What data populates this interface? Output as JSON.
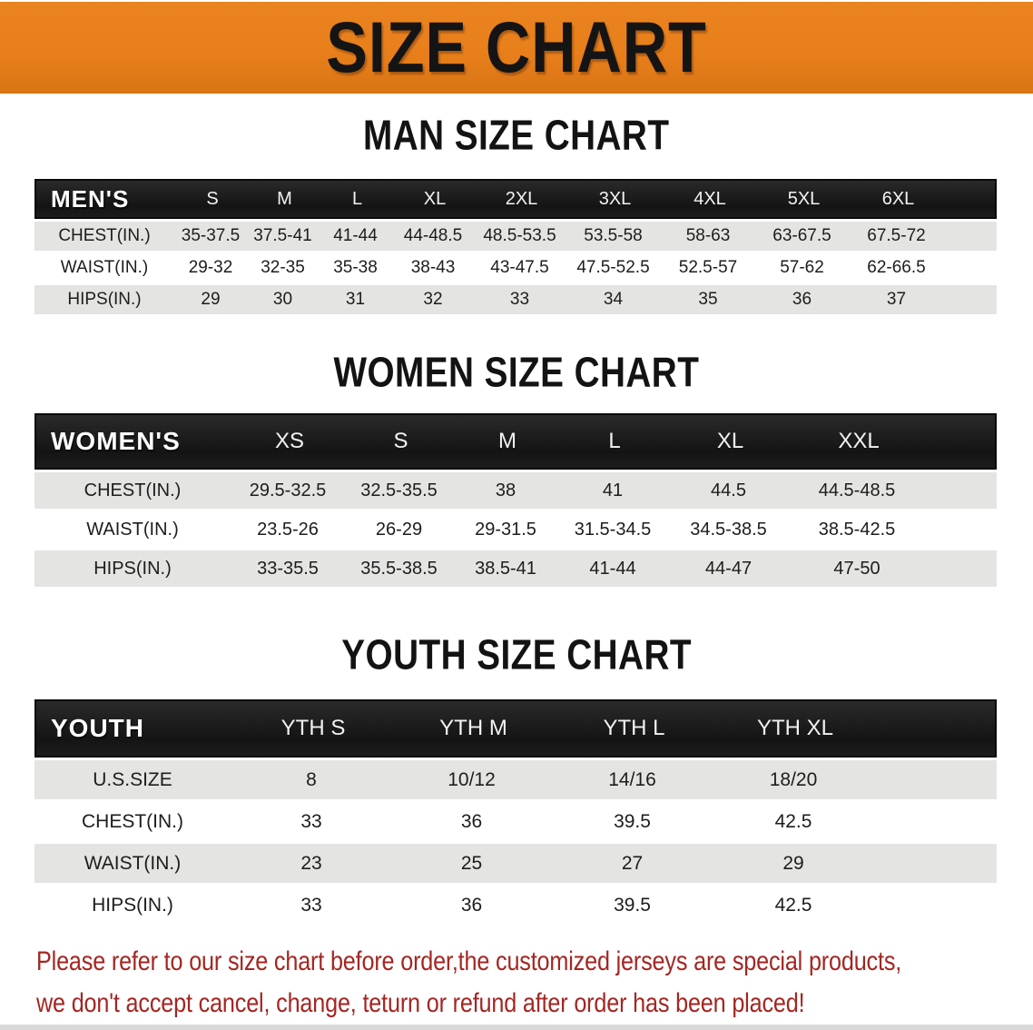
{
  "banner": {
    "title": "SIZE CHART",
    "bg_color": "#E8801C"
  },
  "sections": [
    {
      "heading": "MAN SIZE CHART",
      "table": {
        "label": "MEN'S",
        "columns": [
          "S",
          "M",
          "L",
          "XL",
          "2XL",
          "3XL",
          "4XL",
          "5XL",
          "6XL"
        ],
        "rows": [
          {
            "label": "CHEST(IN.)",
            "values": [
              "35-37.5",
              "37.5-41",
              "41-44",
              "44-48.5",
              "48.5-53.5",
              "53.5-58",
              "58-63",
              "63-67.5",
              "67.5-72"
            ]
          },
          {
            "label": "WAIST(IN.)",
            "values": [
              "29-32",
              "32-35",
              "35-38",
              "38-43",
              "43-47.5",
              "47.5-52.5",
              "52.5-57",
              "57-62",
              "62-66.5"
            ]
          },
          {
            "label": "HIPS(IN.)",
            "values": [
              "29",
              "30",
              "31",
              "32",
              "33",
              "34",
              "35",
              "36",
              "37"
            ]
          }
        ]
      }
    },
    {
      "heading": "WOMEN SIZE CHART",
      "table": {
        "label": "WOMEN'S",
        "columns": [
          "XS",
          "S",
          "M",
          "L",
          "XL",
          "XXL"
        ],
        "rows": [
          {
            "label": "CHEST(IN.)",
            "values": [
              "29.5-32.5",
              "32.5-35.5",
              "38",
              "41",
              "44.5",
              "44.5-48.5"
            ]
          },
          {
            "label": "WAIST(IN.)",
            "values": [
              "23.5-26",
              "26-29",
              "29-31.5",
              "31.5-34.5",
              "34.5-38.5",
              "38.5-42.5"
            ]
          },
          {
            "label": "HIPS(IN.)",
            "values": [
              "33-35.5",
              "35.5-38.5",
              "38.5-41",
              "41-44",
              "44-47",
              "47-50"
            ]
          }
        ]
      }
    },
    {
      "heading": "YOUTH SIZE CHART",
      "table": {
        "label": "YOUTH",
        "columns": [
          "YTH S",
          "YTH M",
          "YTH L",
          "YTH XL"
        ],
        "rows": [
          {
            "label": "U.S.SIZE",
            "values": [
              "8",
              "10/12",
              "14/16",
              "18/20"
            ]
          },
          {
            "label": "CHEST(IN.)",
            "values": [
              "33",
              "36",
              "39.5",
              "42.5"
            ]
          },
          {
            "label": "WAIST(IN.)",
            "values": [
              "23",
              "25",
              "27",
              "29"
            ]
          },
          {
            "label": "HIPS(IN.)",
            "values": [
              "33",
              "36",
              "39.5",
              "42.5"
            ]
          }
        ]
      }
    }
  ],
  "disclaimer": {
    "lines": [
      "Please refer to our size chart before order,the customized jerseys are special products,",
      "we don't accept cancel, change, teturn or refund after order has been placed!"
    ],
    "color": "#A32622"
  },
  "colors": {
    "banner_orange": "#E8801C",
    "header_black": "#161616",
    "row_gray": "#E4E4E2",
    "row_white": "#FFFFFF",
    "disclaimer_red": "#A32622"
  }
}
